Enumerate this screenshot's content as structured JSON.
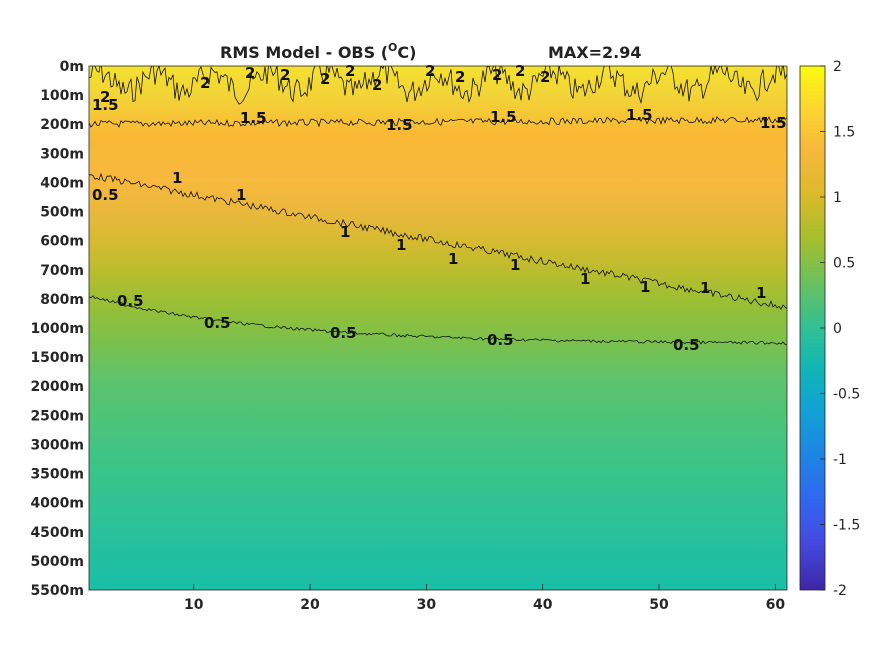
{
  "chart_data": {
    "type": "heatmap",
    "title": "RMS Model - OBS (",
    "title_unit_sup": "O",
    "title_unit_end": "C)",
    "max_label": "MAX=2.94",
    "x_ticks": [
      10,
      20,
      30,
      40,
      50,
      60
    ],
    "x_range": [
      1,
      61
    ],
    "depth_levels": [
      "0m",
      "100m",
      "200m",
      "300m",
      "400m",
      "500m",
      "600m",
      "700m",
      "800m",
      "1000m",
      "1500m",
      "2000m",
      "2500m",
      "3000m",
      "3500m",
      "4000m",
      "4500m",
      "5000m",
      "5500m"
    ],
    "colorbar": {
      "range": [
        -2,
        2
      ],
      "ticks": [
        "2",
        "1.5",
        "1",
        "0.5",
        "0",
        "-0.5",
        "-1",
        "-1.5",
        "-2"
      ],
      "colormap": "parula"
    },
    "rms_profile": [
      {
        "depth": "0m",
        "value": 1.95
      },
      {
        "depth": "100m",
        "value": 1.75
      },
      {
        "depth": "200m",
        "value": 1.4
      },
      {
        "depth": "300m",
        "value": 1.25
      },
      {
        "depth": "400m",
        "value": 1.1
      },
      {
        "depth": "500m",
        "value": 1.0
      },
      {
        "depth": "600m",
        "value": 0.9
      },
      {
        "depth": "700m",
        "value": 0.8
      },
      {
        "depth": "800m",
        "value": 0.7
      },
      {
        "depth": "1000m",
        "value": 0.55
      },
      {
        "depth": "1500m",
        "value": 0.4
      },
      {
        "depth": "2000m",
        "value": 0.35
      },
      {
        "depth": "2500m",
        "value": 0.3
      },
      {
        "depth": "3000m",
        "value": 0.25
      },
      {
        "depth": "3500m",
        "value": 0.2
      },
      {
        "depth": "4000m",
        "value": 0.17
      },
      {
        "depth": "4500m",
        "value": 0.14
      },
      {
        "depth": "5000m",
        "value": 0.1
      },
      {
        "depth": "5500m",
        "value": 0.08
      }
    ],
    "contours": [
      {
        "level": "2",
        "labels": [
          "2",
          "2",
          "2",
          "2",
          "2",
          "2",
          "2",
          "2",
          "2",
          "2",
          "2",
          "2"
        ]
      },
      {
        "level": "1.5",
        "labels": [
          "1.5",
          "1.5",
          "1.5",
          "1.5",
          "1.5",
          "1.5",
          "1.5"
        ]
      },
      {
        "level": "1",
        "labels": [
          "1",
          "1",
          "1",
          "1",
          "1",
          "1",
          "1",
          "1",
          "1",
          "1"
        ]
      },
      {
        "level": "0.5",
        "labels": [
          "0.5",
          "0.5",
          "0.5",
          "0.5",
          "0.5",
          "0.5"
        ]
      }
    ]
  }
}
